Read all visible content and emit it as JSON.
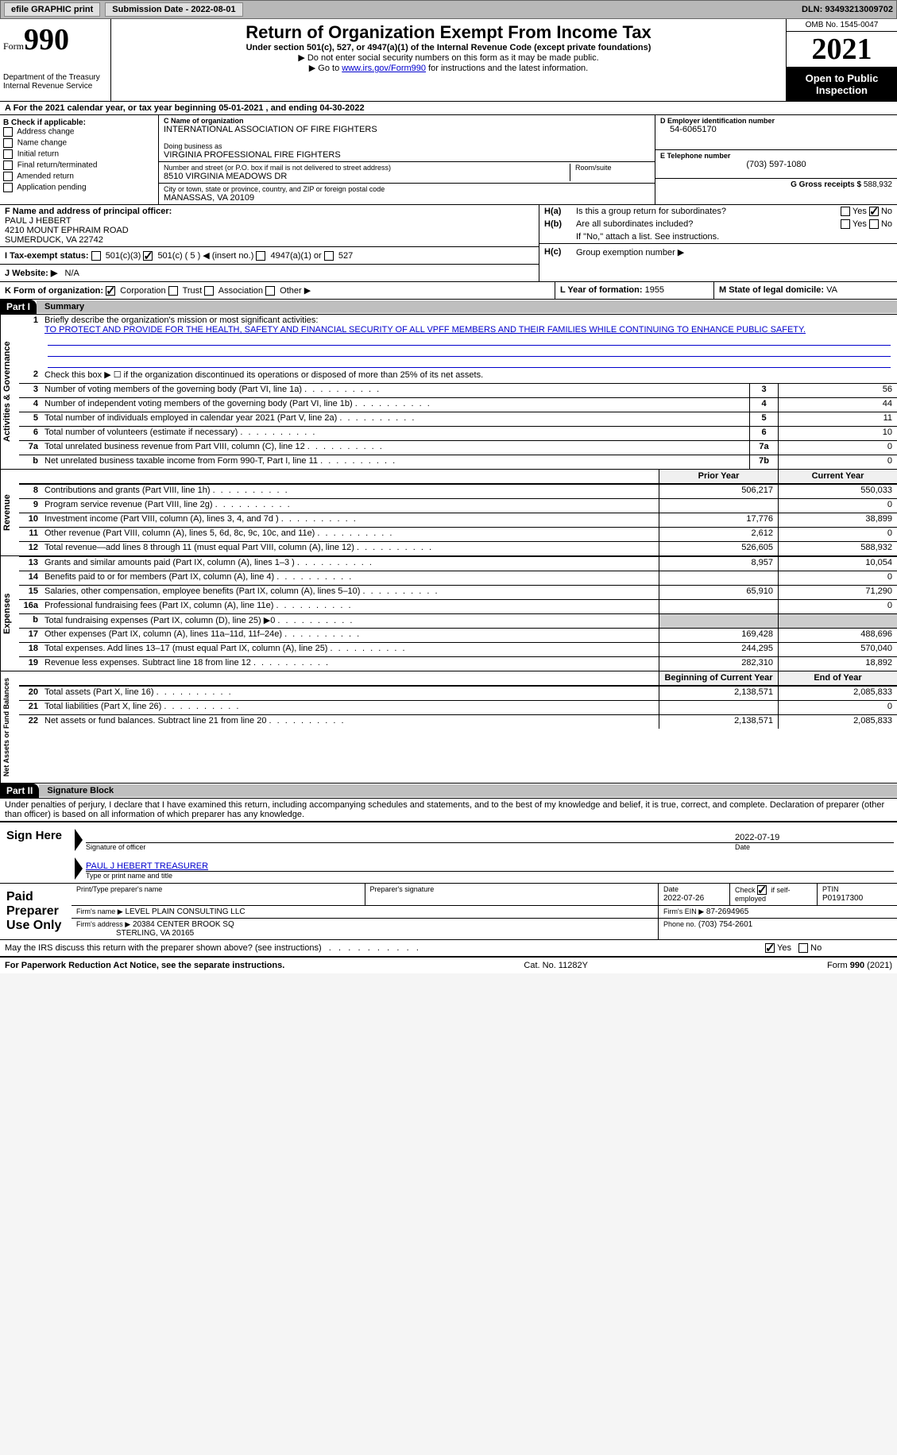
{
  "topbar": {
    "efile": "efile GRAPHIC print",
    "submission": "Submission Date - 2022-08-01",
    "dln": "DLN: 93493213009702"
  },
  "header": {
    "form_word": "Form",
    "form_num": "990",
    "dept": "Department of the Treasury\nInternal Revenue Service",
    "title": "Return of Organization Exempt From Income Tax",
    "subtitle": "Under section 501(c), 527, or 4947(a)(1) of the Internal Revenue Code (except private foundations)",
    "note1": "▶ Do not enter social security numbers on this form as it may be made public.",
    "note2_pre": "▶ Go to ",
    "note2_link": "www.irs.gov/Form990",
    "note2_post": " for instructions and the latest information.",
    "omb": "OMB No. 1545-0047",
    "year": "2021",
    "open_public": "Open to Public Inspection"
  },
  "section_a": {
    "text": "A For the 2021 calendar year, or tax year beginning 05-01-2021    , and ending 04-30-2022"
  },
  "section_b": {
    "label": "B Check if applicable:",
    "items": [
      "Address change",
      "Name change",
      "Initial return",
      "Final return/terminated",
      "Amended return",
      "Application pending"
    ]
  },
  "section_c": {
    "name_label": "C Name of organization",
    "name": "INTERNATIONAL ASSOCIATION OF FIRE FIGHTERS",
    "dba_label": "Doing business as",
    "dba": "VIRGINIA PROFESSIONAL FIRE FIGHTERS",
    "addr_label": "Number and street (or P.O. box if mail is not delivered to street address)",
    "room_label": "Room/suite",
    "addr": "8510 VIRGINIA MEADOWS DR",
    "city_label": "City or town, state or province, country, and ZIP or foreign postal code",
    "city": "MANASSAS, VA  20109"
  },
  "section_d": {
    "label": "D Employer identification number",
    "val": "54-6065170"
  },
  "section_e": {
    "label": "E Telephone number",
    "val": "(703) 597-1080"
  },
  "section_g": {
    "label": "G Gross receipts $",
    "val": "588,932"
  },
  "section_f": {
    "label": "F  Name and address of principal officer:",
    "name": "PAUL J HEBERT",
    "addr1": "4210 MOUNT EPHRAIM ROAD",
    "addr2": "SUMERDUCK, VA  22742"
  },
  "section_h": {
    "a_label": "H(a)",
    "a_text": "Is this a group return for subordinates?",
    "b_label": "H(b)",
    "b_text": "Are all subordinates included?",
    "b_note": "If \"No,\" attach a list. See instructions.",
    "c_label": "H(c)",
    "c_text": "Group exemption number ▶"
  },
  "section_i": {
    "label": "I   Tax-exempt status:",
    "opts": [
      "501(c)(3)",
      "501(c) ( 5 ) ◀ (insert no.)",
      "4947(a)(1) or",
      "527"
    ]
  },
  "section_j": {
    "label": "J   Website: ▶",
    "val": "N/A"
  },
  "section_k": {
    "label": "K Form of organization:",
    "opts": [
      "Corporation",
      "Trust",
      "Association",
      "Other ▶"
    ]
  },
  "section_l": {
    "label": "L Year of formation:",
    "val": "1955"
  },
  "section_m": {
    "label": "M State of legal domicile:",
    "val": "VA"
  },
  "part1": {
    "title": "Part I",
    "subtitle": "Summary",
    "q1_label": "1",
    "q1_text": "Briefly describe the organization's mission or most significant activities:",
    "q1_mission": "TO PROTECT AND PROVIDE FOR THE HEALTH, SAFETY AND FINANCIAL SECURITY OF ALL VPFF MEMBERS AND THEIR FAMILIES WHILE CONTINUING TO ENHANCE PUBLIC SAFETY.",
    "q2": "Check this box ▶ ☐  if the organization discontinued its operations or disposed of more than 25% of its net assets.",
    "lines": [
      {
        "n": "3",
        "t": "Number of voting members of the governing body (Part VI, line 1a)",
        "box": "3",
        "v": "56"
      },
      {
        "n": "4",
        "t": "Number of independent voting members of the governing body (Part VI, line 1b)",
        "box": "4",
        "v": "44"
      },
      {
        "n": "5",
        "t": "Total number of individuals employed in calendar year 2021 (Part V, line 2a)",
        "box": "5",
        "v": "11"
      },
      {
        "n": "6",
        "t": "Total number of volunteers (estimate if necessary)",
        "box": "6",
        "v": "10"
      },
      {
        "n": "7a",
        "t": "Total unrelated business revenue from Part VIII, column (C), line 12",
        "box": "7a",
        "v": "0"
      },
      {
        "n": "b",
        "t": "Net unrelated business taxable income from Form 990-T, Part I, line 11",
        "box": "7b",
        "v": "0"
      }
    ],
    "prior_year": "Prior Year",
    "current_year": "Current Year",
    "rev_lines": [
      {
        "n": "8",
        "t": "Contributions and grants (Part VIII, line 1h)",
        "py": "506,217",
        "cy": "550,033"
      },
      {
        "n": "9",
        "t": "Program service revenue (Part VIII, line 2g)",
        "py": "",
        "cy": "0"
      },
      {
        "n": "10",
        "t": "Investment income (Part VIII, column (A), lines 3, 4, and 7d )",
        "py": "17,776",
        "cy": "38,899"
      },
      {
        "n": "11",
        "t": "Other revenue (Part VIII, column (A), lines 5, 6d, 8c, 9c, 10c, and 11e)",
        "py": "2,612",
        "cy": "0"
      },
      {
        "n": "12",
        "t": "Total revenue—add lines 8 through 11 (must equal Part VIII, column (A), line 12)",
        "py": "526,605",
        "cy": "588,932"
      }
    ],
    "exp_lines": [
      {
        "n": "13",
        "t": "Grants and similar amounts paid (Part IX, column (A), lines 1–3 )",
        "py": "8,957",
        "cy": "10,054"
      },
      {
        "n": "14",
        "t": "Benefits paid to or for members (Part IX, column (A), line 4)",
        "py": "",
        "cy": "0"
      },
      {
        "n": "15",
        "t": "Salaries, other compensation, employee benefits (Part IX, column (A), lines 5–10)",
        "py": "65,910",
        "cy": "71,290"
      },
      {
        "n": "16a",
        "t": "Professional fundraising fees (Part IX, column (A), line 11e)",
        "py": "",
        "cy": "0"
      },
      {
        "n": "b",
        "t": "Total fundraising expenses (Part IX, column (D), line 25) ▶0",
        "py": "SHADE",
        "cy": "SHADE"
      },
      {
        "n": "17",
        "t": "Other expenses (Part IX, column (A), lines 11a–11d, 11f–24e)",
        "py": "169,428",
        "cy": "488,696"
      },
      {
        "n": "18",
        "t": "Total expenses. Add lines 13–17 (must equal Part IX, column (A), line 25)",
        "py": "244,295",
        "cy": "570,040"
      },
      {
        "n": "19",
        "t": "Revenue less expenses. Subtract line 18 from line 12",
        "py": "282,310",
        "cy": "18,892"
      }
    ],
    "bcy": "Beginning of Current Year",
    "eoy": "End of Year",
    "net_lines": [
      {
        "n": "20",
        "t": "Total assets (Part X, line 16)",
        "py": "2,138,571",
        "cy": "2,085,833"
      },
      {
        "n": "21",
        "t": "Total liabilities (Part X, line 26)",
        "py": "",
        "cy": "0"
      },
      {
        "n": "22",
        "t": "Net assets or fund balances. Subtract line 21 from line 20",
        "py": "2,138,571",
        "cy": "2,085,833"
      }
    ],
    "vlabels": {
      "act": "Activities & Governance",
      "rev": "Revenue",
      "exp": "Expenses",
      "net": "Net Assets or Fund Balances"
    }
  },
  "part2": {
    "title": "Part II",
    "subtitle": "Signature Block",
    "decl": "Under penalties of perjury, I declare that I have examined this return, including accompanying schedules and statements, and to the best of my knowledge and belief, it is true, correct, and complete. Declaration of preparer (other than officer) is based on all information of which preparer has any knowledge.",
    "sign_here": "Sign Here",
    "sig_officer": "Signature of officer",
    "sig_date": "2022-07-19",
    "date_label": "Date",
    "name_title": "PAUL J HEBERT TREASURER",
    "name_label": "Type or print name and title",
    "paid_prep": "Paid Preparer Use Only",
    "prep_name_label": "Print/Type preparer's name",
    "prep_sig_label": "Preparer's signature",
    "prep_date_label": "Date",
    "prep_date": "2022-07-26",
    "self_emp": "Check ☑ if self-employed",
    "ptin_label": "PTIN",
    "ptin": "P01917300",
    "firm_name_label": "Firm's name    ▶",
    "firm_name": "LEVEL PLAIN CONSULTING LLC",
    "firm_ein_label": "Firm's EIN ▶",
    "firm_ein": "87-2694965",
    "firm_addr_label": "Firm's address ▶",
    "firm_addr": "20384 CENTER BROOK SQ",
    "firm_city": "STERLING, VA  20165",
    "phone_label": "Phone no.",
    "phone": "(703) 754-2601",
    "discuss": "May the IRS discuss this return with the preparer shown above? (see instructions)",
    "yes": "Yes",
    "no": "No"
  },
  "footer": {
    "paperwork": "For Paperwork Reduction Act Notice, see the separate instructions.",
    "cat": "Cat. No. 11282Y",
    "form": "Form 990 (2021)"
  }
}
